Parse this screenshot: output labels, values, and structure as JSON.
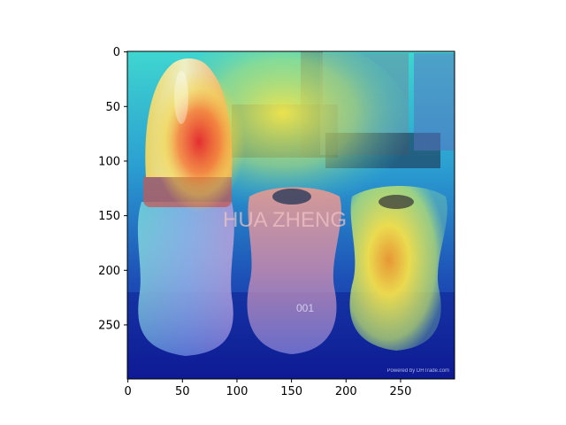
{
  "image": {
    "description_free": true,
    "overlay": "jet-colormap heatmap",
    "colors": {
      "hot": "#e0262a",
      "warm": "#f2e23a",
      "cool": "#2ea8d8",
      "cold": "#101a9a",
      "bottle_glow": "#f5f0b0"
    }
  },
  "axes": {
    "x_ticks": [
      "0",
      "50",
      "100",
      "150",
      "200",
      "250"
    ],
    "y_ticks": [
      "0",
      "50",
      "100",
      "150",
      "200",
      "250"
    ],
    "x_range": [
      0,
      299
    ],
    "y_range": [
      0,
      299
    ],
    "y_inverted": true
  },
  "embedded_text": {
    "watermark": "HUA ZHENG",
    "bottle_number": "001",
    "corner_credit": "Powered by DHTrade.com"
  }
}
